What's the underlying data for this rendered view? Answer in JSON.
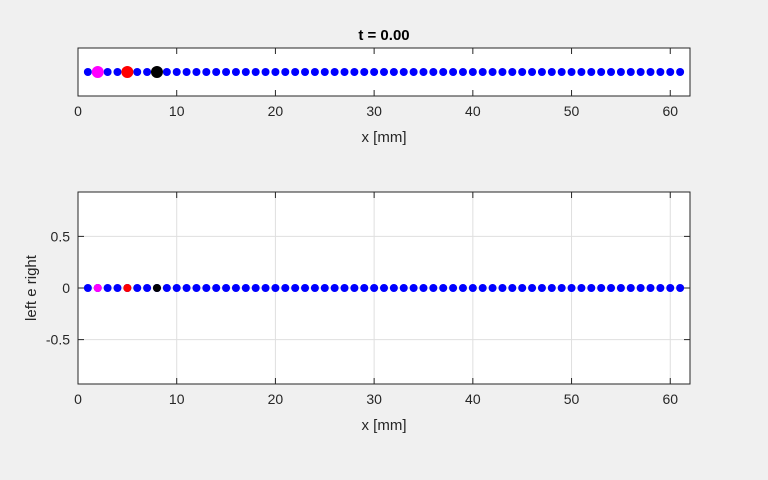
{
  "chart_data": [
    {
      "type": "scatter",
      "title": "t  =  0.00",
      "xlabel": "x  [mm]",
      "ylabel": "",
      "xlim": [
        0,
        62
      ],
      "ylim": [
        -1,
        1
      ],
      "x_ticks": [
        0,
        10,
        20,
        30,
        40,
        50,
        60
      ],
      "y_ticks": [],
      "grid": false,
      "series": [
        {
          "color": "#0000ff",
          "marker_size": "small",
          "x_range": [
            1,
            61
          ],
          "x_step": 1,
          "y": 0
        },
        {
          "color": "#ff00ff",
          "marker_size": "large",
          "x": [
            2
          ],
          "y": [
            0
          ]
        },
        {
          "color": "#ff0000",
          "marker_size": "large",
          "x": [
            5
          ],
          "y": [
            0
          ]
        },
        {
          "color": "#000000",
          "marker_size": "large",
          "x": [
            8
          ],
          "y": [
            0
          ]
        }
      ]
    },
    {
      "type": "scatter",
      "title": "",
      "xlabel": "x  [mm]",
      "ylabel": "left  e   right",
      "xlim": [
        0,
        62
      ],
      "ylim": [
        -0.93,
        0.93
      ],
      "x_ticks": [
        0,
        10,
        20,
        30,
        40,
        50,
        60
      ],
      "y_ticks": [
        -0.5,
        0,
        0.5
      ],
      "grid": true,
      "series": [
        {
          "color": "#0000ff",
          "marker_size": "small",
          "x_range": [
            1,
            61
          ],
          "x_step": 1,
          "y": 0
        },
        {
          "color": "#ff00ff",
          "marker_size": "small",
          "x": [
            2
          ],
          "y": [
            0
          ]
        },
        {
          "color": "#ff0000",
          "marker_size": "small",
          "x": [
            5
          ],
          "y": [
            0
          ]
        },
        {
          "color": "#000000",
          "marker_size": "small",
          "x": [
            8
          ],
          "y": [
            0
          ]
        }
      ]
    }
  ]
}
